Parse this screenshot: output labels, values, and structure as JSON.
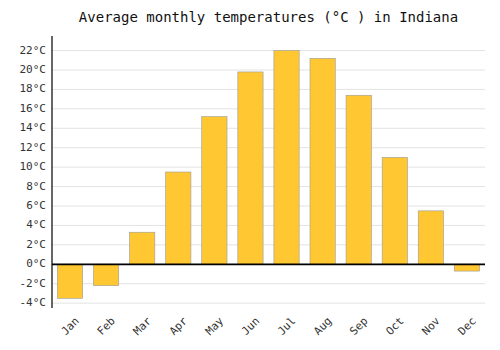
{
  "chart_data": {
    "type": "bar",
    "title": "Average monthly temperatures (°C ) in Indiana",
    "categories": [
      "Jan",
      "Feb",
      "Mar",
      "Apr",
      "May",
      "Jun",
      "Jul",
      "Aug",
      "Sep",
      "Oct",
      "Nov",
      "Dec"
    ],
    "values": [
      -3.5,
      -2.2,
      3.3,
      9.5,
      15.2,
      19.8,
      22.0,
      21.2,
      17.4,
      11.0,
      5.5,
      -0.7
    ],
    "color": "#FFC832",
    "ylim": [
      -4.5,
      23.5
    ],
    "yticks": [
      {
        "value": -4,
        "label": "-4°C"
      },
      {
        "value": -2,
        "label": "-2°C"
      },
      {
        "value": 0,
        "label": "0°C"
      },
      {
        "value": 2,
        "label": "2°C"
      },
      {
        "value": 4,
        "label": "4°C"
      },
      {
        "value": 6,
        "label": "6°C"
      },
      {
        "value": 8,
        "label": "8°C"
      },
      {
        "value": 10,
        "label": "10°C"
      },
      {
        "value": 12,
        "label": "12°C"
      },
      {
        "value": 14,
        "label": "14°C"
      },
      {
        "value": 16,
        "label": "16°C"
      },
      {
        "value": 18,
        "label": "18°C"
      },
      {
        "value": 20,
        "label": "20°C"
      },
      {
        "value": 22,
        "label": "22°C"
      }
    ],
    "grid": true
  }
}
